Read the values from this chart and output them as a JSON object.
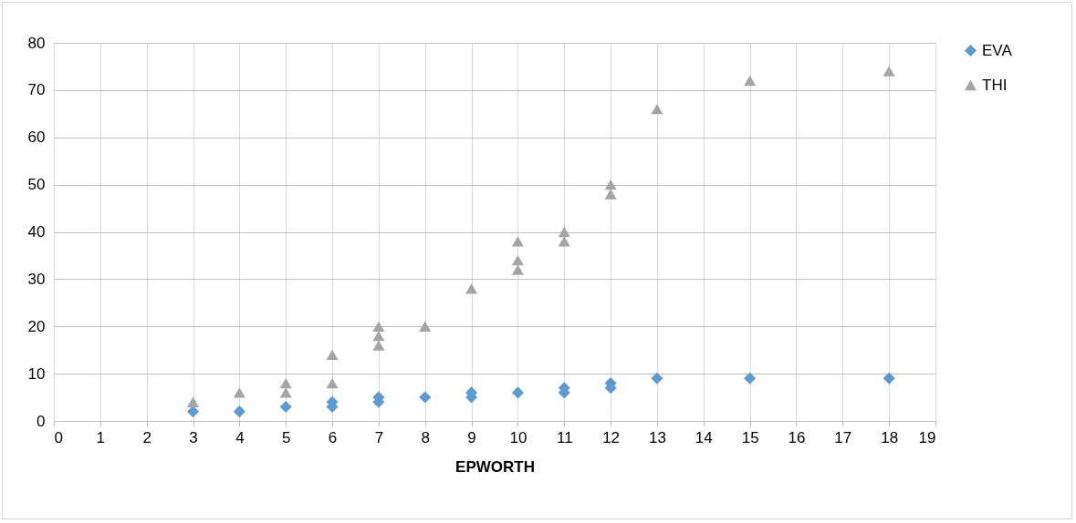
{
  "chart_data": {
    "type": "scatter",
    "xlabel": "EPWORTH",
    "xlim": [
      0,
      19
    ],
    "xticks": [
      0,
      1,
      2,
      3,
      4,
      5,
      6,
      7,
      8,
      9,
      10,
      11,
      12,
      13,
      14,
      15,
      16,
      17,
      18,
      19
    ],
    "ylim": [
      0,
      80
    ],
    "yticks": [
      0,
      10,
      20,
      30,
      40,
      50,
      60,
      70,
      80
    ],
    "grid": true,
    "legend": "right",
    "series": [
      {
        "name": "EVA",
        "color": "#5b9bd5",
        "marker": "diamond",
        "x": [
          3,
          4,
          5,
          6,
          6,
          7,
          7,
          8,
          9,
          9,
          10,
          11,
          11,
          12,
          12,
          13,
          15,
          18
        ],
        "values": [
          2,
          2,
          3,
          3,
          4,
          4,
          5,
          5,
          5,
          6,
          6,
          6,
          7,
          7,
          8,
          9,
          9,
          9
        ]
      },
      {
        "name": "THI",
        "color": "#a5a5a5",
        "marker": "triangle",
        "x": [
          3,
          4,
          5,
          5,
          6,
          6,
          7,
          7,
          7,
          8,
          9,
          10,
          10,
          10,
          11,
          11,
          12,
          12,
          13,
          15,
          18
        ],
        "values": [
          4,
          6,
          6,
          8,
          8,
          14,
          16,
          18,
          20,
          20,
          28,
          32,
          34,
          38,
          38,
          40,
          48,
          50,
          66,
          72,
          74
        ]
      }
    ]
  }
}
